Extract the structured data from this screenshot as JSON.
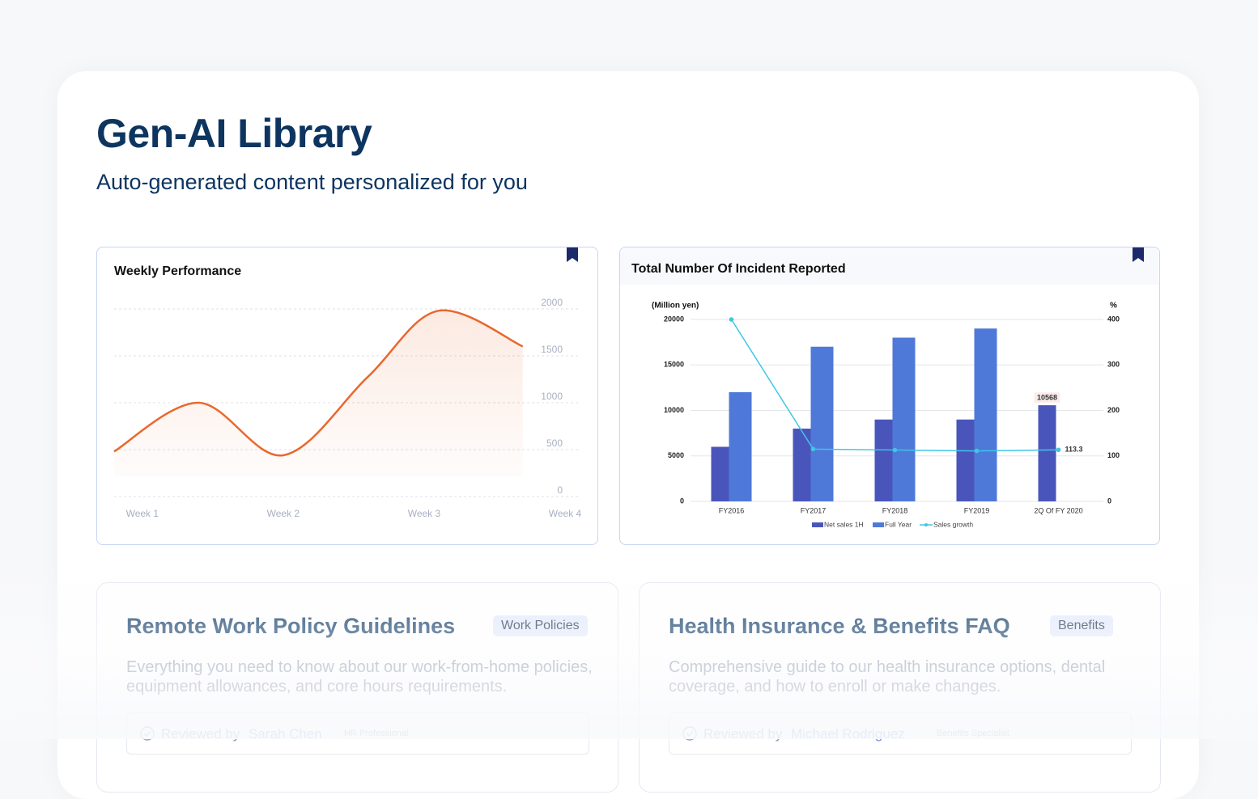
{
  "header": {
    "title": "Gen-AI Library",
    "subtitle": "Auto-generated content personalized for you"
  },
  "chart_data": [
    {
      "type": "line",
      "title": "Weekly Performance",
      "x": [
        0.8,
        1.4,
        2.0,
        2.6,
        3.1,
        3.7
      ],
      "values": [
        480,
        1000,
        440,
        1275,
        1980,
        1600
      ],
      "color": "#e8682e",
      "xlim": [
        0.8,
        4
      ],
      "xticks": [
        {
          "value": 1,
          "label": "Week 1"
        },
        {
          "value": 2,
          "label": "Week 2"
        },
        {
          "value": 3,
          "label": "Week 3"
        },
        {
          "value": 4,
          "label": "Week 4"
        }
      ],
      "ylim": [
        0,
        2000
      ],
      "yticks": [
        0,
        500,
        1000,
        1500,
        2000
      ],
      "grid": true
    },
    {
      "type": "bar",
      "title": "Total Number Of Incident Reported",
      "ylabel": "(Million yen)",
      "y2label": "%",
      "categories": [
        "FY2016",
        "FY2017",
        "FY2018",
        "FY2019",
        "2Q Of FY 2020"
      ],
      "series": [
        {
          "name": "Net sales 1H",
          "color": "#4a55bb",
          "values": [
            6000,
            8000,
            9000,
            9000,
            10568
          ],
          "value_labels": [
            null,
            null,
            null,
            null,
            "10568"
          ]
        },
        {
          "name": "Full Year",
          "color": "#4f79d8",
          "values": [
            12000,
            17000,
            18000,
            19000,
            null
          ]
        },
        {
          "name": "Sales growth",
          "color": "#3fc6e6",
          "axis": "y2",
          "type": "line",
          "values": [
            400,
            115,
            113,
            111,
            113.3
          ],
          "value_labels": [
            null,
            null,
            null,
            null,
            "113.3"
          ]
        }
      ],
      "ylim": [
        0,
        20000
      ],
      "yticks": [
        0,
        5000,
        10000,
        15000,
        20000
      ],
      "y2lim": [
        0,
        400
      ],
      "y2ticks": [
        0,
        100,
        200,
        300,
        400
      ],
      "grid": true,
      "legend": "bottom"
    }
  ],
  "cards": [
    {
      "title": "Remote Work Policy Guidelines",
      "tag": "Work Policies",
      "description": "Everything you need to know about our work-from-home policies, equipment allowances, and core hours requirements.",
      "reviewed": "Reviewed by",
      "reviewer": "Sarah Chen",
      "role": "HR Professional"
    },
    {
      "title": "Health Insurance & Benefits FAQ",
      "tag": "Benefits",
      "description": "Comprehensive guide to our health insurance options, dental coverage, and how to enroll or make changes.",
      "reviewed": "Reviewed by",
      "reviewer": "Michael Rodriguez",
      "role": "Benefits Specialist"
    }
  ]
}
